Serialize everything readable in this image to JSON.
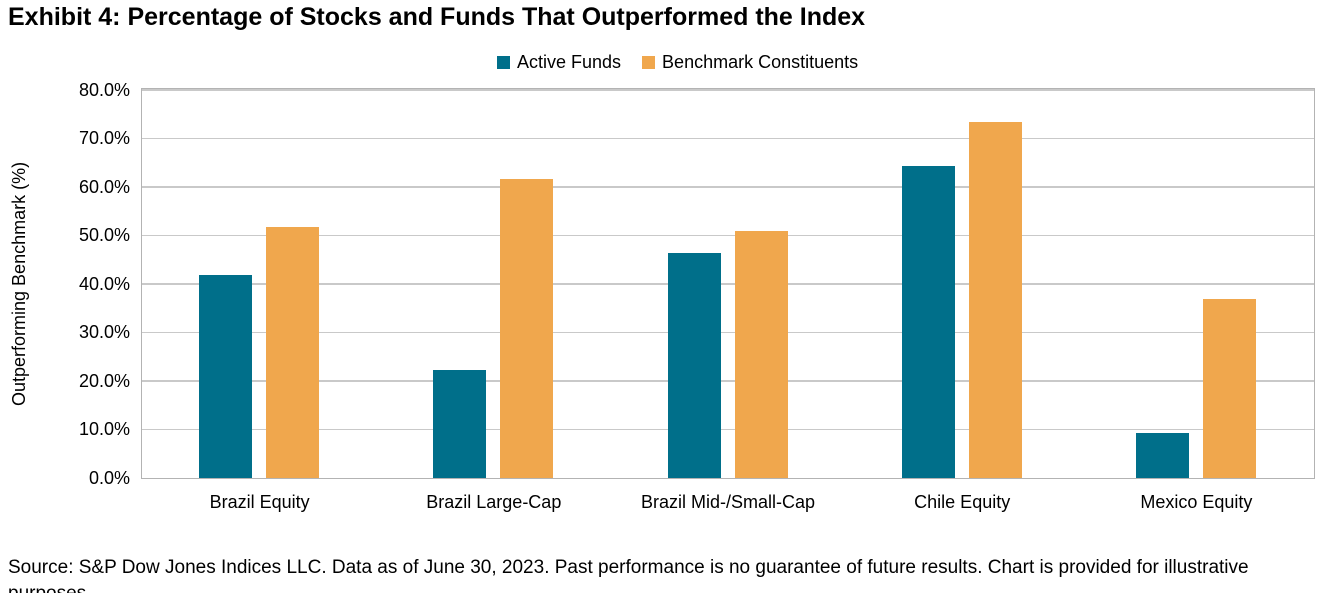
{
  "title": "Exhibit 4: Percentage of Stocks and Funds That Outperformed the Index",
  "colors": {
    "active_funds": "#006f8a",
    "benchmark_constituents": "#f0a74d",
    "gridline": "#c9c9c9",
    "plot_border": "#b3b3b3"
  },
  "chart_data": {
    "type": "bar",
    "title": "Exhibit 4: Percentage of Stocks and Funds That Outperformed the Index",
    "categories": [
      "Brazil Equity",
      "Brazil Large-Cap",
      "Brazil Mid-/Small-Cap",
      "Chile Equity",
      "Mexico Equity"
    ],
    "series": [
      {
        "name": "Active Funds",
        "color": "#006f8a",
        "values": [
          41.9,
          22.3,
          46.3,
          64.3,
          9.3
        ]
      },
      {
        "name": "Benchmark Constituents",
        "color": "#f0a74d",
        "values": [
          51.8,
          61.7,
          50.9,
          73.5,
          36.9
        ]
      }
    ],
    "xlabel": "",
    "ylabel": "Outperforming Benchmark (%)",
    "ylim": [
      0,
      80
    ],
    "ytick_step": 10,
    "ytick_labels": [
      "0.0%",
      "10.0%",
      "20.0%",
      "30.0%",
      "40.0%",
      "50.0%",
      "60.0%",
      "70.0%",
      "80.0%"
    ],
    "grid": true,
    "legend_position": "top-center"
  },
  "footer": {
    "source_text": "Source: S&P Dow Jones Indices LLC. Data as of June 30, 2023. Past performance is no guarantee of future results. Chart is provided for illustrative purposes."
  }
}
